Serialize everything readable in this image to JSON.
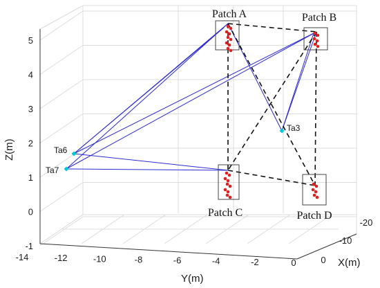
{
  "chart_data": {
    "type": "3d-scatter-network",
    "title": "",
    "xlabel": "X(m)",
    "ylabel": "Y(m)",
    "zlabel": "Z(m)",
    "xlim": [
      -20,
      0
    ],
    "ylim": [
      -14,
      0
    ],
    "zlim": [
      -1,
      5
    ],
    "grid": true,
    "z_ticks": [
      "-1",
      "0",
      "1",
      "2",
      "3",
      "4",
      "5"
    ],
    "y_ticks": [
      "-14",
      "-12",
      "-10",
      "-8",
      "-6",
      "-4",
      "-2",
      "0"
    ],
    "x_ticks": [
      "-20",
      "-10",
      "0"
    ],
    "patches": [
      {
        "label": "Patch A",
        "x": -14,
        "y": -4,
        "z": 5.2
      },
      {
        "label": "Patch B",
        "x": -18,
        "y": -1,
        "z": 5.0
      },
      {
        "label": "Patch C",
        "x": -6,
        "y": -4,
        "z": 1.0
      },
      {
        "label": "Patch D",
        "x": -8,
        "y": -1,
        "z": 0.2
      }
    ],
    "tags": [
      {
        "label": "Ta6",
        "x": -2,
        "y": -12,
        "z": 1.7
      },
      {
        "label": "Ta7",
        "x": 0,
        "y": -12,
        "z": 1.2
      },
      {
        "label": "Ta3",
        "x": -12,
        "y": -1.5,
        "z": 2.4
      }
    ],
    "colors": {
      "tag_marker": "#00c8e0",
      "patch_dots": "#e02020",
      "signal_lines": "#2a2ad4",
      "patch_links": "#111111"
    }
  }
}
